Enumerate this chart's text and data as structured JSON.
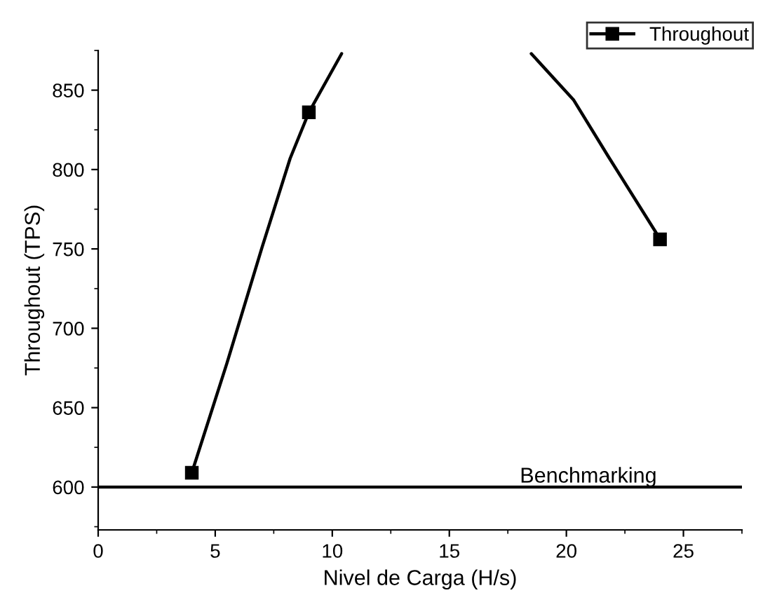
{
  "chart_data": {
    "type": "line",
    "xlabel": "Nivel de Carga (H/s)",
    "ylabel": "Throughout (TPS)",
    "series": [
      {
        "name": "Throughout",
        "color": "#000000",
        "x": [
          4,
          5.5,
          7,
          8.2,
          9,
          10.4,
          14,
          18.5,
          20.3,
          21.8,
          23.8,
          24
        ],
        "values": [
          609,
          678,
          751,
          807,
          836,
          873,
          null,
          873,
          844,
          808,
          761,
          756
        ],
        "marker": "none"
      },
      {
        "type": "scatter",
        "color": "#000000",
        "x": [
          4,
          9,
          24
        ],
        "values": [
          609,
          836,
          756
        ]
      }
    ],
    "xlim": [
      0,
      27.5
    ],
    "xticks": [
      0,
      5,
      10,
      15,
      20,
      25
    ],
    "ylim": [
      573,
      875
    ],
    "yticks": [
      600,
      650,
      700,
      750,
      800,
      850
    ],
    "ref_lines": [
      {
        "axis": "y",
        "value": 600,
        "label": "Benchmarking",
        "color": "#000000",
        "line_style": "solid"
      }
    ],
    "marker": "square",
    "line_style": "solid",
    "legend": "top right",
    "grid": false
  }
}
